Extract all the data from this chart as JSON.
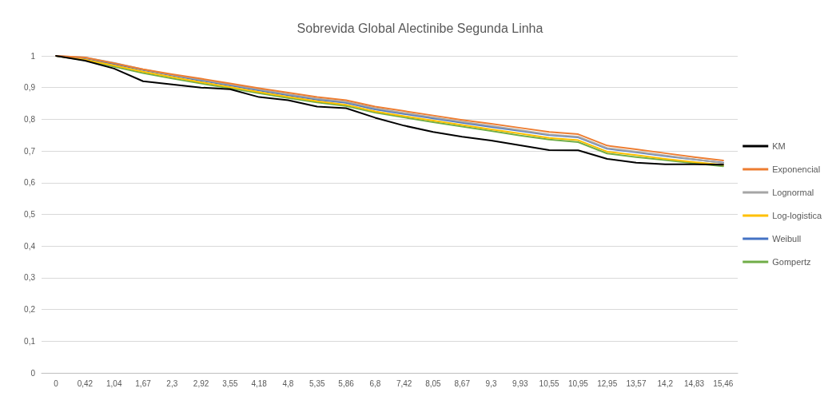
{
  "chart_data": {
    "type": "line",
    "title": "Sobrevida Global Alectinibe Segunda Linha",
    "categories": [
      "0",
      "0,42",
      "1,04",
      "1,67",
      "2,3",
      "2,92",
      "3,55",
      "4,18",
      "4,8",
      "5,35",
      "5,86",
      "6,8",
      "7,42",
      "8,05",
      "8,67",
      "9,3",
      "9,93",
      "10,55",
      "10,95",
      "12,95",
      "13,57",
      "14,2",
      "14,83",
      "15,46"
    ],
    "series": [
      {
        "name": "KM",
        "color": "#000000",
        "values": [
          1,
          0.985,
          0.96,
          0.92,
          0.91,
          0.9,
          0.895,
          0.87,
          0.86,
          0.84,
          0.835,
          0.805,
          0.78,
          0.76,
          0.745,
          0.733,
          0.718,
          0.703,
          0.702,
          0.675,
          0.663,
          0.658,
          0.658,
          0.657
        ]
      },
      {
        "name": "Exponencial",
        "color": "#ed7d31",
        "values": [
          1,
          0.995,
          0.977,
          0.958,
          0.942,
          0.928,
          0.913,
          0.898,
          0.884,
          0.87,
          0.86,
          0.84,
          0.826,
          0.812,
          0.798,
          0.786,
          0.773,
          0.76,
          0.753,
          0.717,
          0.705,
          0.693,
          0.681,
          0.67
        ]
      },
      {
        "name": "Lognormal",
        "color": "#a5a5a5",
        "values": [
          1,
          0.995,
          0.978,
          0.957,
          0.94,
          0.925,
          0.91,
          0.894,
          0.879,
          0.865,
          0.855,
          0.835,
          0.82,
          0.806,
          0.792,
          0.779,
          0.766,
          0.752,
          0.745,
          0.709,
          0.698,
          0.686,
          0.674,
          0.662
        ]
      },
      {
        "name": "Log-logistica",
        "color": "#ffc000",
        "values": [
          1,
          0.988,
          0.97,
          0.95,
          0.933,
          0.917,
          0.902,
          0.886,
          0.871,
          0.857,
          0.846,
          0.825,
          0.81,
          0.796,
          0.782,
          0.768,
          0.755,
          0.741,
          0.734,
          0.698,
          0.687,
          0.675,
          0.665,
          0.656
        ]
      },
      {
        "name": "Weibull",
        "color": "#4472c4",
        "values": [
          1,
          0.99,
          0.974,
          0.955,
          0.938,
          0.922,
          0.907,
          0.891,
          0.876,
          0.862,
          0.852,
          0.831,
          0.817,
          0.803,
          0.789,
          0.776,
          0.763,
          0.75,
          0.743,
          0.707,
          0.696,
          0.684,
          0.673,
          0.663
        ]
      },
      {
        "name": "Gompertz",
        "color": "#70ad47",
        "values": [
          1,
          0.986,
          0.966,
          0.946,
          0.929,
          0.913,
          0.898,
          0.882,
          0.867,
          0.853,
          0.842,
          0.821,
          0.806,
          0.791,
          0.777,
          0.763,
          0.749,
          0.736,
          0.728,
          0.692,
          0.681,
          0.671,
          0.661,
          0.652
        ]
      }
    ],
    "ylim": [
      0,
      1
    ],
    "yticks": [
      0,
      {
        "value": 0.1,
        "label": "0,1"
      },
      {
        "value": 0.2,
        "label": "0,2"
      },
      {
        "value": 0.3,
        "label": "0,3"
      },
      {
        "value": 0.4,
        "label": "0,4"
      },
      {
        "value": 0.5,
        "label": "0,5"
      },
      {
        "value": 0.6,
        "label": "0,6"
      },
      {
        "value": 0.7,
        "label": "0,7"
      },
      {
        "value": 0.8,
        "label": "0,8"
      },
      {
        "value": 0.9,
        "label": "0,9"
      },
      1
    ],
    "grid": "y",
    "legend": "right",
    "marker": "none",
    "line_style": "solid"
  }
}
